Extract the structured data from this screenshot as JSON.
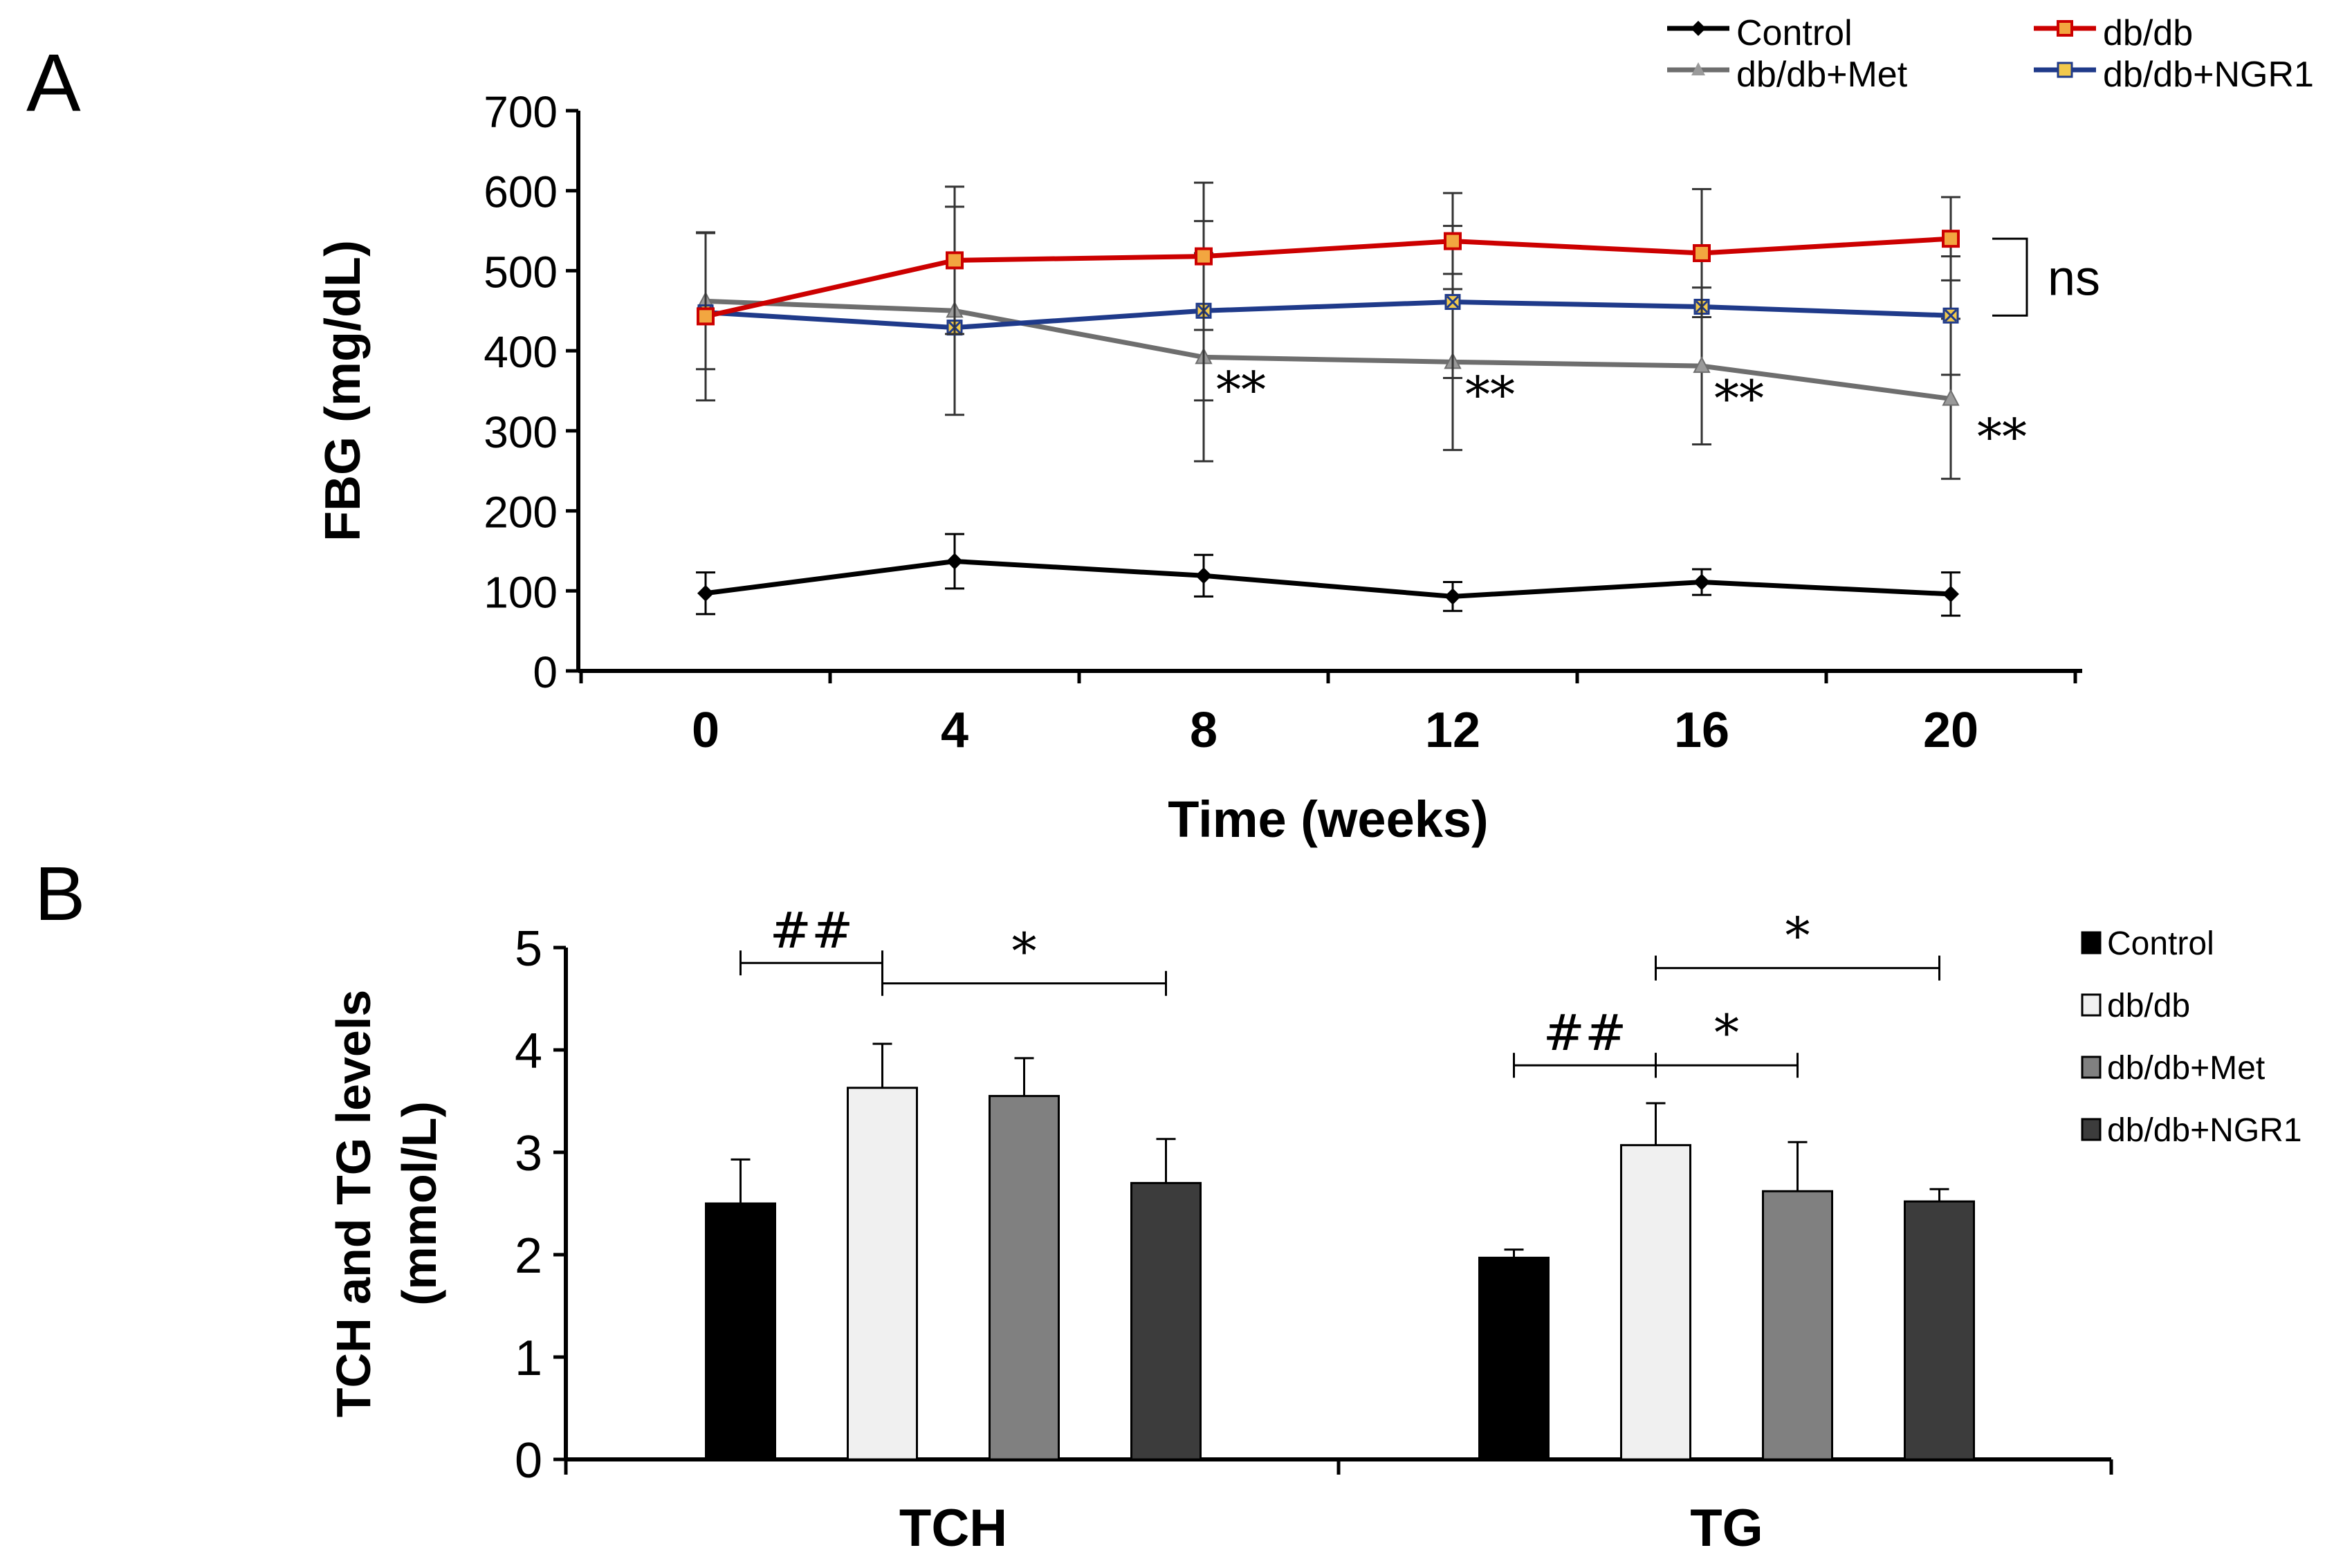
{
  "panel_a_label": "A",
  "panel_b_label": "B",
  "chart_data": [
    {
      "type": "line",
      "panel": "A",
      "ylabel": "FBG (mg/dL)",
      "xlabel": "Time (weeks)",
      "x": [
        0,
        4,
        8,
        12,
        16,
        20
      ],
      "ylim": [
        0,
        700
      ],
      "yticks": [
        0,
        100,
        200,
        300,
        400,
        500,
        600,
        700
      ],
      "series": [
        {
          "name": "Control",
          "color": "#000000",
          "marker": "diamond",
          "values": [
            97,
            137,
            119,
            93,
            111,
            96
          ],
          "errors": [
            26,
            34,
            26,
            18,
            16,
            27
          ]
        },
        {
          "name": "db/db",
          "color": "#cc0000",
          "marker": "square",
          "values": [
            443,
            513,
            518,
            537,
            522,
            540
          ],
          "errors": [
            105,
            92,
            92,
            60,
            80,
            52
          ]
        },
        {
          "name": "db/db+Met",
          "color": "#6e6e6e",
          "marker": "triangle",
          "values": [
            462,
            450,
            392,
            386,
            381,
            340
          ],
          "errors": [
            85,
            130,
            130,
            110,
            98,
            100
          ]
        },
        {
          "name": "db/db+NGR1",
          "color": "#1f3a8a",
          "marker": "x",
          "values": [
            448,
            429,
            450,
            461,
            455,
            444
          ],
          "errors": [
            0,
            0,
            112,
            95,
            0,
            74
          ]
        }
      ],
      "annotations": {
        "met_sig": [
          "**",
          "**",
          "**",
          "**"
        ],
        "ns": "ns"
      }
    },
    {
      "type": "bar",
      "panel": "B",
      "ylabel_line1": "TCH and TG levels",
      "ylabel_line2": "(mmol/L)",
      "categories": [
        "TCH",
        "TG"
      ],
      "ylim": [
        0,
        5
      ],
      "yticks": [
        0,
        1,
        2,
        3,
        4,
        5
      ],
      "series": [
        {
          "name": "Control",
          "color": "#000000",
          "values": [
            2.5,
            1.97
          ],
          "errors": [
            0.43,
            0.08
          ]
        },
        {
          "name": "db/db",
          "color": "#f0f0f0",
          "values": [
            3.63,
            3.07
          ],
          "errors": [
            0.43,
            0.41
          ]
        },
        {
          "name": "db/db+Met",
          "color": "#808080",
          "values": [
            3.55,
            2.62
          ],
          "errors": [
            0.37,
            0.48
          ]
        },
        {
          "name": "db/db+NGR1",
          "color": "#3c3c3c",
          "values": [
            2.7,
            2.52
          ],
          "errors": [
            0.43,
            0.12
          ]
        }
      ],
      "significance": [
        {
          "label": "##",
          "group": 0,
          "from": 0,
          "to": 1,
          "level": 4.85
        },
        {
          "label": "*",
          "group": 0,
          "from": 1,
          "to": 3,
          "level": 4.65
        },
        {
          "label": "*",
          "group": 1,
          "from": 1,
          "to": 3,
          "level": 4.8
        },
        {
          "label": "##",
          "group": 1,
          "from": 0,
          "to": 1,
          "level": 3.85
        },
        {
          "label": "*",
          "group": 1,
          "from": 1,
          "to": 2,
          "level": 3.85
        }
      ]
    }
  ]
}
